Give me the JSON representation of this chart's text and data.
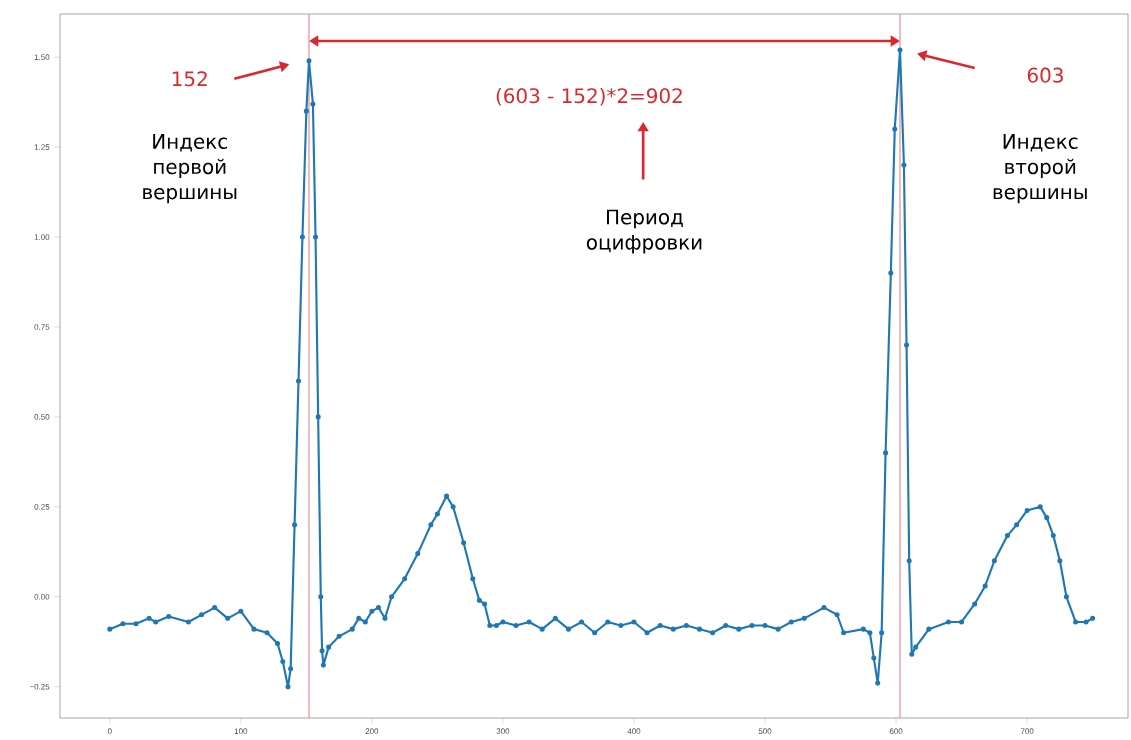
{
  "chart_data": {
    "type": "line",
    "annotations": [
      "152",
      "Индекс первой вершины",
      "(603 - 152)*2=902",
      "Период оцифровки",
      "603",
      "Индекс второй вершины"
    ],
    "x": [
      0,
      10,
      20,
      30,
      35,
      45,
      60,
      70,
      80,
      90,
      100,
      110,
      120,
      128,
      132,
      136,
      138,
      141,
      144,
      147,
      150,
      152,
      155,
      157,
      159,
      161,
      162,
      163,
      167,
      175,
      185,
      190,
      195,
      200,
      205,
      210,
      215,
      225,
      235,
      245,
      250,
      257,
      262,
      270,
      277,
      282,
      286,
      290,
      295,
      300,
      310,
      320,
      330,
      340,
      350,
      360,
      370,
      380,
      390,
      400,
      410,
      420,
      430,
      440,
      450,
      460,
      470,
      480,
      490,
      500,
      510,
      520,
      530,
      545,
      555,
      560,
      575,
      580,
      583,
      586,
      589,
      592,
      596,
      599,
      603,
      606,
      608,
      610,
      612,
      615,
      625,
      640,
      650,
      660,
      668,
      675,
      685,
      692,
      700,
      710,
      715,
      720,
      725,
      730,
      737,
      745,
      750
    ],
    "series": [
      {
        "color": "#1f77b4",
        "values": [
          -0.09,
          -0.075,
          -0.075,
          -0.06,
          -0.07,
          -0.055,
          -0.07,
          -0.05,
          -0.03,
          -0.06,
          -0.04,
          -0.09,
          -0.1,
          -0.13,
          -0.18,
          -0.25,
          -0.2,
          0.2,
          0.6,
          1.0,
          1.35,
          1.49,
          1.37,
          1.0,
          0.5,
          0.0,
          -0.15,
          -0.19,
          -0.14,
          -0.11,
          -0.09,
          -0.06,
          -0.07,
          -0.04,
          -0.03,
          -0.06,
          0.0,
          0.05,
          0.12,
          0.2,
          0.23,
          0.28,
          0.25,
          0.15,
          0.05,
          -0.01,
          -0.02,
          -0.08,
          -0.08,
          -0.07,
          -0.08,
          -0.07,
          -0.09,
          -0.06,
          -0.09,
          -0.07,
          -0.1,
          -0.07,
          -0.08,
          -0.07,
          -0.1,
          -0.08,
          -0.09,
          -0.08,
          -0.09,
          -0.1,
          -0.08,
          -0.09,
          -0.08,
          -0.08,
          -0.09,
          -0.07,
          -0.06,
          -0.03,
          -0.05,
          -0.1,
          -0.09,
          -0.1,
          -0.17,
          -0.24,
          -0.1,
          0.4,
          0.9,
          1.3,
          1.52,
          1.2,
          0.7,
          0.1,
          -0.16,
          -0.14,
          -0.09,
          -0.07,
          -0.07,
          -0.02,
          0.03,
          0.1,
          0.17,
          0.2,
          0.24,
          0.25,
          0.22,
          0.17,
          0.1,
          0.0,
          -0.07,
          -0.07,
          -0.06
        ]
      }
    ],
    "xlim": [
      -38,
      777
    ],
    "ylim": [
      -0.337,
      1.62
    ],
    "xticks": [
      0,
      100,
      200,
      300,
      400,
      500,
      600,
      700
    ],
    "yticks": [
      {
        "value": -0.25,
        "label": "−0.25"
      },
      {
        "value": 0,
        "label": "0.00"
      },
      {
        "value": 0.25,
        "label": "0.25"
      },
      {
        "value": 0.5,
        "label": "0.50"
      },
      {
        "value": 0.75,
        "label": "0.75"
      },
      {
        "value": 1.0,
        "label": "1.00"
      },
      {
        "value": 1.25,
        "label": "1.25"
      },
      {
        "value": 1.5,
        "label": "1.50"
      }
    ],
    "ref_lines": [
      {
        "axis": "x",
        "value": 152,
        "color": "#e87e82"
      },
      {
        "axis": "x",
        "value": 603,
        "color": "#e87e82"
      }
    ],
    "marker": "circle",
    "line_style": "solid",
    "grid": false
  }
}
